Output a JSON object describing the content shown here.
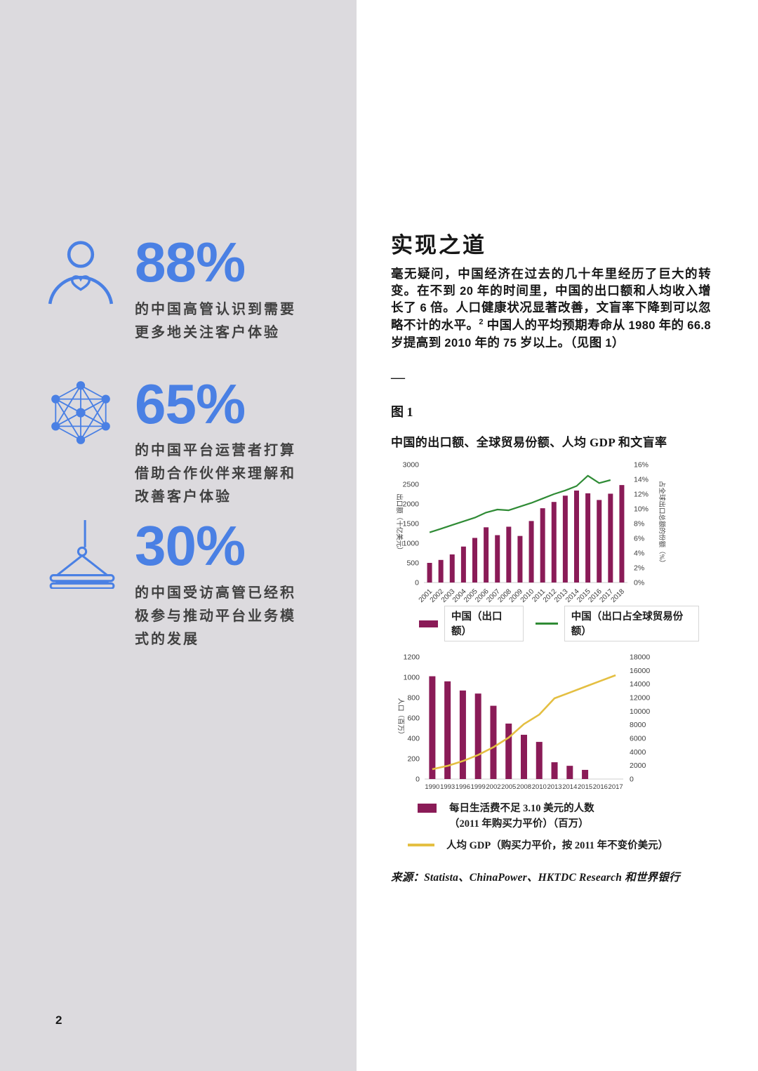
{
  "page": {
    "number": "2"
  },
  "colors": {
    "accent_blue": "#4a80e4",
    "sidebar_gray": "#dcdade",
    "bar_magenta": "#8a1b57",
    "line_green": "#2f8b35",
    "line_gold": "#e4bf42",
    "text_ink": "#161616"
  },
  "sidebar": {
    "stats": [
      {
        "icon": "person-heart-icon",
        "value": "88%",
        "lines": [
          "的中国高管认识到需要",
          "更多地关注客户体验"
        ]
      },
      {
        "icon": "network-icon",
        "value": "65%",
        "lines": [
          "的中国平台运营者打算",
          "借助合作伙伴来理解和",
          "改善客户体验"
        ]
      },
      {
        "icon": "crane-platform-icon",
        "value": "30%",
        "lines": [
          "的中国受访高管已经积",
          "极参与推动平台业务模",
          "式的发展"
        ]
      }
    ]
  },
  "article": {
    "title": "实现之道",
    "paragraph": [
      {
        "t": "毫无疑问，中国经济在过去的几十年里经历了巨大的转变。在不到 "
      },
      {
        "t": "20",
        "b": true
      },
      {
        "t": " 年的时间里，中国的出口额和人均收入增长了 "
      },
      {
        "t": "6",
        "b": true
      },
      {
        "t": " 倍。人口健康状况显著改善，文盲率下降到可以忽略不计的水平。"
      },
      {
        "t": "2",
        "sup": true
      },
      {
        "t": " 中国人的平均预期寿命从 "
      },
      {
        "t": "1980",
        "b": true
      },
      {
        "t": " 年的 "
      },
      {
        "t": "66.8",
        "b": true
      },
      {
        "t": " 岁提高到 "
      },
      {
        "t": "2010",
        "b": true
      },
      {
        "t": " 年的 "
      },
      {
        "t": "75",
        "b": true
      },
      {
        "t": " 岁以上。（见图 "
      },
      {
        "t": "1",
        "b": true
      },
      {
        "t": "）"
      }
    ],
    "divider": "—",
    "figure_label": "图 1",
    "figure_title": "中国的出口额、全球贸易份额、人均 GDP 和文盲率",
    "source": "来源：Statista、ChinaPower、HKTDC Research 和世界银行"
  },
  "chart_data": [
    {
      "type": "bar",
      "subtype": "bar+line combo",
      "categories": [
        "2001",
        "2002",
        "2003",
        "2004",
        "2005",
        "2006",
        "2007",
        "2008",
        "2009",
        "2010",
        "2011",
        "2012",
        "2013",
        "2014",
        "2015",
        "2016",
        "2017",
        "2018"
      ],
      "series": [
        {
          "name": "中国（出口额）",
          "type": "bar",
          "color": "#8a1b57",
          "axis": "left",
          "values": [
            500,
            575,
            715,
            915,
            1135,
            1405,
            1205,
            1420,
            1185,
            1565,
            1890,
            2050,
            2210,
            2340,
            2270,
            2100,
            2260,
            2480
          ]
        },
        {
          "name": "中国（出口占全球贸易份额）",
          "type": "line",
          "color": "#2f8b35",
          "axis": "right",
          "values": [
            6.8,
            7.3,
            7.8,
            8.3,
            8.8,
            9.5,
            9.9,
            9.8,
            10.3,
            10.8,
            11.4,
            12.0,
            12.5,
            13.1,
            14.5,
            13.5,
            13.9,
            null
          ]
        }
      ],
      "left_axis": {
        "label": "出口额（十亿美元）",
        "min": 0,
        "max": 3000,
        "step": 500,
        "suffix": ""
      },
      "right_axis": {
        "label": "占全球出口总额的份额（%）",
        "min": 0,
        "max": 16,
        "step": 2,
        "suffix": "%"
      },
      "legend_position": "bottom",
      "grid": false
    },
    {
      "type": "bar",
      "subtype": "bar+line combo",
      "categories": [
        "1990",
        "1993",
        "1996",
        "1999",
        "2002",
        "2005",
        "2008",
        "2010",
        "2013",
        "2014",
        "2015",
        "2016",
        "2017"
      ],
      "series": [
        {
          "name": "每日生活费不足 3.10 美元的人数（2011 年购买力平价）（百万）",
          "legend_lines": [
            "每日生活费不足 3.10 美元的人数",
            "（2011 年购买力平价）（百万）"
          ],
          "type": "bar",
          "color": "#8a1b57",
          "axis": "left",
          "values": [
            1010,
            960,
            870,
            840,
            720,
            545,
            435,
            365,
            165,
            130,
            90,
            null,
            null
          ]
        },
        {
          "name": "人均 GDP（购买力平价，按 2011 年不变价美元）",
          "type": "line",
          "color": "#e4bf42",
          "axis": "right",
          "values": [
            1450,
            1950,
            2650,
            3550,
            4700,
            6100,
            8100,
            9500,
            11900,
            12750,
            13600,
            14450,
            15300
          ]
        }
      ],
      "left_axis": {
        "label": "人口（百万）",
        "min": 0,
        "max": 1200,
        "step": 200,
        "suffix": ""
      },
      "right_axis": {
        "label": "",
        "min": 0,
        "max": 18000,
        "step": 2000,
        "suffix": ""
      },
      "legend_position": "bottom",
      "grid": false
    }
  ]
}
